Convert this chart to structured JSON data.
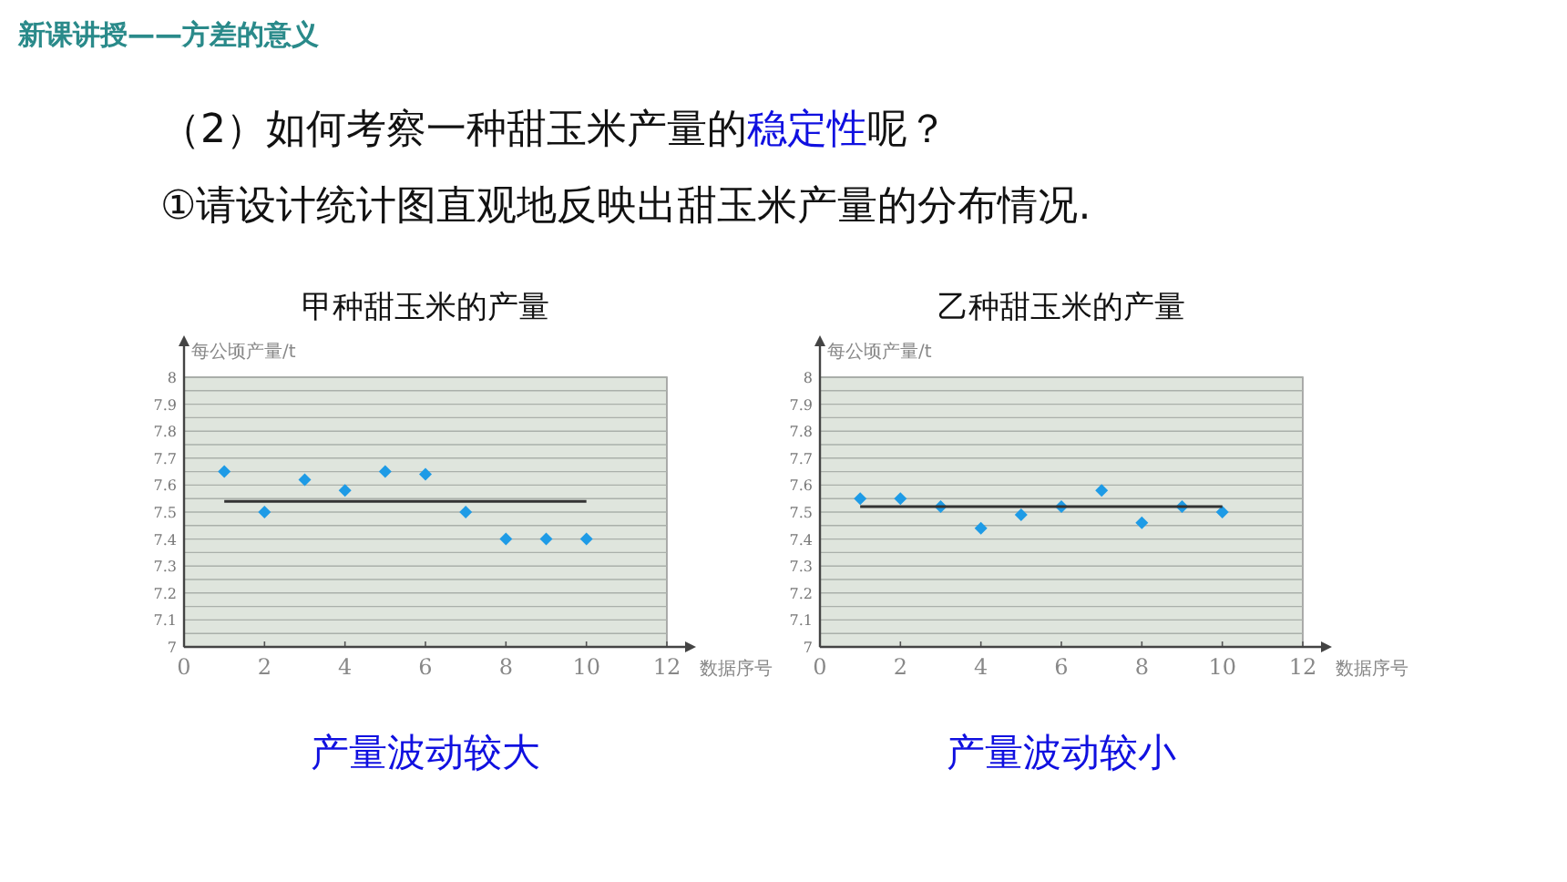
{
  "chart_data": [
    {
      "type": "scatter",
      "title": "甲种甜玉米的产量",
      "ylabel": "每公顷产量/t",
      "xlabel": "数据序号",
      "annotations": [
        "新课讲授——方差的意义",
        "（2）如何考察一种甜玉米产量的",
        "稳定性",
        "呢？",
        "①请设计统计图直观地反映出甜玉米产量的分布情况.",
        "产量波动较大"
      ],
      "xlim": [
        0,
        12
      ],
      "xticks": [
        0,
        2,
        4,
        6,
        8,
        10,
        12
      ],
      "ylim": [
        7,
        8
      ],
      "yticks": [
        7,
        {
          "value": 7.05,
          "label": null
        },
        7.1,
        {
          "value": 7.15,
          "label": null
        },
        7.2,
        {
          "value": 7.25,
          "label": null
        },
        7.3,
        {
          "value": 7.35,
          "label": null
        },
        7.4,
        {
          "value": 7.45,
          "label": null
        },
        7.5,
        {
          "value": 7.55,
          "label": null
        },
        7.6,
        {
          "value": 7.65,
          "label": null
        },
        7.7,
        {
          "value": 7.75,
          "label": null
        },
        7.8,
        {
          "value": 7.85,
          "label": null
        },
        7.9,
        {
          "value": 7.95,
          "label": null
        },
        8
      ],
      "grid": "y",
      "series": [
        {
          "marker": "diamond",
          "color": "#1e9be6",
          "x": [
            1,
            2,
            3,
            4,
            5,
            6,
            7,
            8,
            9,
            10
          ],
          "values": [
            7.65,
            7.5,
            7.62,
            7.58,
            7.65,
            7.64,
            7.5,
            7.4,
            7.4,
            7.4
          ]
        },
        {
          "type": "line",
          "color": "#333333",
          "x": [
            1,
            10
          ],
          "values": [
            7.54,
            7.54
          ]
        }
      ]
    },
    {
      "type": "scatter",
      "title": "乙种甜玉米的产量",
      "ylabel": "每公顷产量/t",
      "xlabel": "数据序号",
      "annotations": [
        "产量波动较小"
      ],
      "xlim": [
        0,
        12
      ],
      "xticks": [
        0,
        2,
        4,
        6,
        8,
        10,
        12
      ],
      "ylim": [
        7,
        8
      ],
      "yticks": [
        7,
        {
          "value": 7.05,
          "label": null
        },
        7.1,
        {
          "value": 7.15,
          "label": null
        },
        7.2,
        {
          "value": 7.25,
          "label": null
        },
        7.3,
        {
          "value": 7.35,
          "label": null
        },
        7.4,
        {
          "value": 7.45,
          "label": null
        },
        7.5,
        {
          "value": 7.55,
          "label": null
        },
        7.6,
        {
          "value": 7.65,
          "label": null
        },
        7.7,
        {
          "value": 7.75,
          "label": null
        },
        7.8,
        {
          "value": 7.85,
          "label": null
        },
        7.9,
        {
          "value": 7.95,
          "label": null
        },
        8
      ],
      "grid": "y",
      "series": [
        {
          "marker": "diamond",
          "color": "#1e9be6",
          "x": [
            1,
            2,
            3,
            4,
            5,
            6,
            7,
            8,
            9,
            10
          ],
          "values": [
            7.55,
            7.55,
            7.52,
            7.44,
            7.49,
            7.52,
            7.58,
            7.46,
            7.52,
            7.5
          ]
        },
        {
          "type": "line",
          "color": "#333333",
          "x": [
            1,
            10
          ],
          "values": [
            7.52,
            7.52
          ]
        }
      ]
    }
  ]
}
